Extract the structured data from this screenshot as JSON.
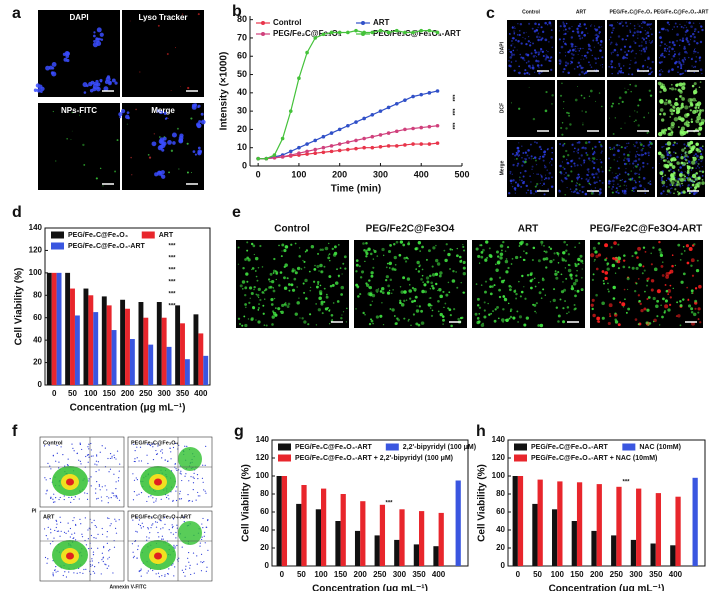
{
  "panel_a": {
    "letter": "a",
    "labels": [
      "DAPI",
      "Lyso Tracker",
      "NPs-FITC",
      "Merge"
    ]
  },
  "panel_c": {
    "letter": "c",
    "columns": [
      "Control",
      "ART",
      "PEG/Fe₂C@Fe₃O₄",
      "PEG/Fe₂C@Fe₃O₄-ART"
    ],
    "rows": [
      "DAPI",
      "DCF",
      "Merge"
    ]
  },
  "panel_e": {
    "letter": "e",
    "labels": [
      "Control",
      "PEG/Fe2C@Fe3O4",
      "ART",
      "PEG/Fe2C@Fe3O4-ART"
    ]
  },
  "panel_f": {
    "letter": "f",
    "labels": [
      "Control",
      "PEG/Fe₂C@Fe₃O₄",
      "ART",
      "PEG/Fe₂C@Fe₃O₄-ART"
    ],
    "xlabel": "Annexin V-FITC",
    "ylabel": "PI"
  },
  "chart_data": [
    {
      "type": "line",
      "panel": "b",
      "xlabel": "Time (min)",
      "ylabel": "Intensity (×1000)",
      "x": [
        0,
        20,
        40,
        60,
        80,
        100,
        120,
        140,
        160,
        180,
        200,
        220,
        240,
        260,
        280,
        300,
        320,
        340,
        360,
        380,
        400,
        420,
        440
      ],
      "xlim": [
        -20,
        500
      ],
      "xticks": [
        0,
        100,
        200,
        300,
        400,
        500
      ],
      "ylim": [
        0,
        82
      ],
      "yticks": [
        0,
        10,
        20,
        30,
        40,
        50,
        60,
        70,
        80
      ],
      "legend": "top",
      "series": [
        {
          "name": "Control",
          "color": "#e8344a",
          "values": [
            4,
            4,
            4.5,
            5,
            5.5,
            6,
            6.5,
            7,
            7.5,
            8,
            8.5,
            9,
            9.5,
            10,
            10,
            10.5,
            11,
            11,
            11.5,
            12,
            12,
            12,
            12.5
          ]
        },
        {
          "name": "ART",
          "color": "#3050c8",
          "values": [
            4,
            4,
            5,
            6,
            8,
            10,
            12,
            14,
            16,
            18,
            20,
            22,
            24,
            26,
            28,
            30,
            32,
            34,
            36,
            38,
            39,
            40,
            41
          ]
        },
        {
          "name": "PEG/Fe₂C@Fe₃O₄",
          "color": "#d0407c",
          "values": [
            4,
            4,
            4.5,
            5,
            6,
            7,
            8,
            9,
            10,
            11,
            12,
            13,
            14,
            15,
            16,
            17,
            18,
            19,
            20,
            20.5,
            21,
            21.5,
            22
          ]
        },
        {
          "name": "PEG/Fe₂C@Fe₃O₄-ART",
          "color": "#44c23a",
          "values": [
            4,
            4,
            6,
            15,
            30,
            48,
            62,
            70,
            72,
            73,
            73,
            73,
            74,
            73,
            73,
            74,
            73,
            74,
            73,
            73,
            74,
            74,
            73
          ]
        }
      ],
      "annotations": [
        "***",
        "***",
        "***"
      ]
    },
    {
      "type": "bar",
      "panel": "d",
      "xlabel": "Concentration (μg mL⁻¹)",
      "ylabel": "Cell Viability (%)",
      "categories": [
        "0",
        "50",
        "100",
        "150",
        "200",
        "250",
        "300",
        "350",
        "400"
      ],
      "ylim": [
        0,
        140
      ],
      "yticks": [
        0,
        20,
        40,
        60,
        80,
        100,
        120,
        140
      ],
      "legend": "top",
      "series": [
        {
          "name": "PEG/Fe₂C@Fe₃O₄",
          "color": "#111111",
          "values": [
            100,
            100,
            86,
            79,
            76,
            74,
            74,
            71,
            63
          ]
        },
        {
          "name": "ART",
          "color": "#e8262c",
          "values": [
            100,
            86,
            80,
            71,
            68,
            60,
            60,
            55,
            46
          ]
        },
        {
          "name": "PEG/Fe₂C@Fe₃O₄-ART",
          "color": "#3a56e0",
          "values": [
            100,
            62,
            65,
            49,
            41,
            36,
            34,
            23,
            26
          ]
        }
      ],
      "annotations": [
        "***",
        "***",
        "***",
        "***",
        "***",
        "***"
      ]
    },
    {
      "type": "bar",
      "panel": "g",
      "xlabel": "Concentration (μg mL⁻¹)",
      "ylabel": "Cell Viability (%)",
      "categories": [
        "0",
        "50",
        "100",
        "150",
        "200",
        "250",
        "300",
        "350",
        "400",
        null
      ],
      "ylim": [
        0,
        140
      ],
      "yticks": [
        0,
        20,
        40,
        60,
        80,
        100,
        120,
        140
      ],
      "legend": "top",
      "series": [
        {
          "name": "PEG/Fe₂C@Fe₃O₄-ART",
          "color": "#111111",
          "values": [
            100,
            69,
            63,
            50,
            39,
            34,
            29,
            24,
            22,
            null
          ]
        },
        {
          "name": "2,2'-bipyridyl (100 μM)",
          "color": "#3a56e0",
          "values": [
            null,
            null,
            null,
            null,
            null,
            null,
            null,
            null,
            null,
            95
          ]
        },
        {
          "name": "PEG/Fe₂C@Fe₃O₄-ART + 2,2'-bipyridyl (100 μM)",
          "color": "#e8262c",
          "values": [
            100,
            90,
            86,
            80,
            72,
            68,
            63,
            61,
            59,
            null
          ]
        }
      ],
      "annotations": [
        "***"
      ]
    },
    {
      "type": "bar",
      "panel": "h",
      "xlabel": "Concentration (μg mL⁻¹)",
      "ylabel": "Cell Viability (%)",
      "categories": [
        "0",
        "50",
        "100",
        "150",
        "200",
        "250",
        "300",
        "350",
        "400",
        null
      ],
      "ylim": [
        0,
        140
      ],
      "yticks": [
        0,
        20,
        40,
        60,
        80,
        100,
        120,
        140
      ],
      "legend": "top",
      "series": [
        {
          "name": "PEG/Fe₂C@Fe₃O₄-ART",
          "color": "#111111",
          "values": [
            100,
            69,
            63,
            50,
            39,
            34,
            29,
            25,
            23,
            null
          ]
        },
        {
          "name": "NAC (10mM)",
          "color": "#3a56e0",
          "values": [
            null,
            null,
            null,
            null,
            null,
            null,
            null,
            null,
            null,
            98
          ]
        },
        {
          "name": "PEG/Fe₂C@Fe₃O₄-ART + NAC (10mM)",
          "color": "#e8262c",
          "values": [
            100,
            96,
            94,
            93,
            91,
            88,
            86,
            81,
            77,
            null
          ]
        }
      ],
      "annotations": [
        "***"
      ]
    }
  ]
}
